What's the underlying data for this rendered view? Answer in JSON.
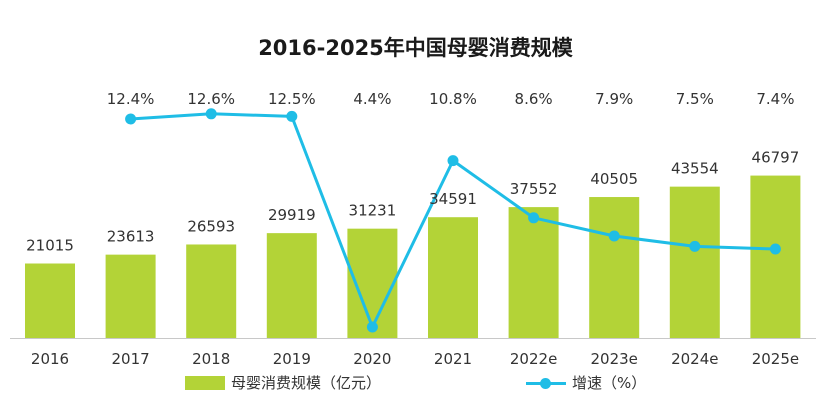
{
  "chart_data": {
    "type": "bar",
    "title": "2016-2025年中国母婴消费规模",
    "categories": [
      "2016",
      "2017",
      "2018",
      "2019",
      "2020",
      "2021",
      "2022e",
      "2023e",
      "2024e",
      "2025e"
    ],
    "series": [
      {
        "name": "母婴消费规模（亿元）",
        "type": "bar",
        "values": [
          21015,
          23613,
          26593,
          29919,
          31231,
          34591,
          37552,
          40505,
          43554,
          46797
        ],
        "color": "#b3d337"
      },
      {
        "name": "增速（%）",
        "type": "line",
        "values": [
          null,
          12.4,
          12.6,
          12.5,
          4.4,
          10.8,
          8.6,
          7.9,
          7.5,
          7.4
        ],
        "labels": [
          "",
          "12.4%",
          "12.6%",
          "12.5%",
          "4.4%",
          "10.8%",
          "8.6%",
          "7.9%",
          "7.5%",
          "7.4%"
        ],
        "color": "#1fbde6"
      }
    ],
    "grid": false,
    "legend_position": "bottom"
  },
  "colors": {
    "bar": "#b3d337",
    "line": "#1fbde6",
    "axis": "#c8c8c8",
    "text": "#333333"
  }
}
